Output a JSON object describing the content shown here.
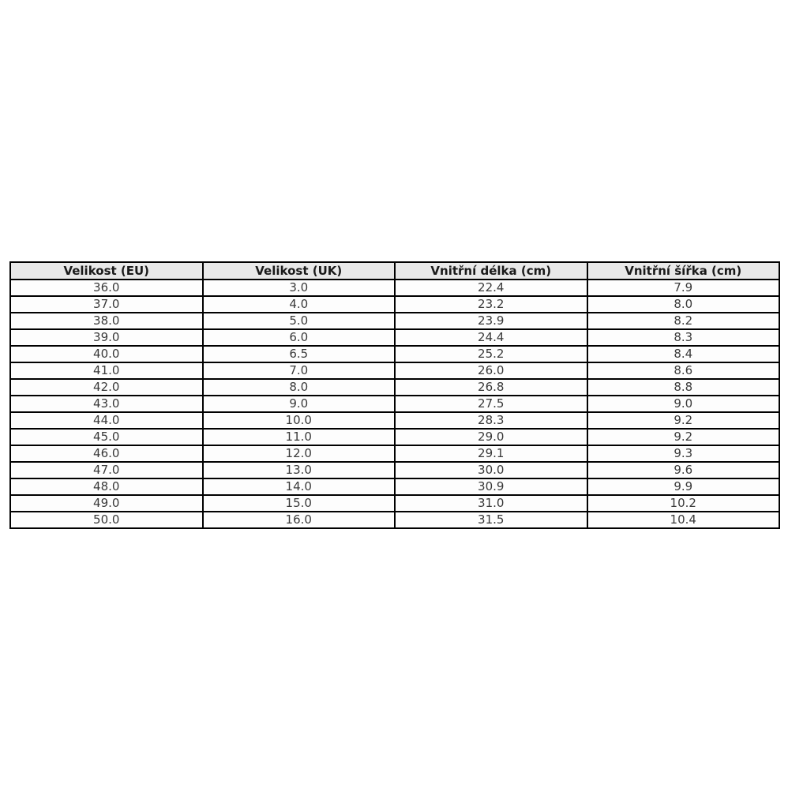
{
  "page": {
    "background_color": "#ffffff"
  },
  "colors": {
    "table_border": "#000000",
    "header_background": "#e8e8e8",
    "header_text": "#1a1a1a",
    "cell_background": "#fdfdfd",
    "cell_text": "#3a3a3a"
  },
  "chart_data": {
    "type": "table",
    "title": "",
    "columns": [
      "Velikost (EU)",
      "Velikost (UK)",
      "Vnitřní délka (cm)",
      "Vnitřní šířka (cm)"
    ],
    "rows": [
      [
        "36.0",
        "3.0",
        "22.4",
        "7.9"
      ],
      [
        "37.0",
        "4.0",
        "23.2",
        "8.0"
      ],
      [
        "38.0",
        "5.0",
        "23.9",
        "8.2"
      ],
      [
        "39.0",
        "6.0",
        "24.4",
        "8.3"
      ],
      [
        "40.0",
        "6.5",
        "25.2",
        "8.4"
      ],
      [
        "41.0",
        "7.0",
        "26.0",
        "8.6"
      ],
      [
        "42.0",
        "8.0",
        "26.8",
        "8.8"
      ],
      [
        "43.0",
        "9.0",
        "27.5",
        "9.0"
      ],
      [
        "44.0",
        "10.0",
        "28.3",
        "9.2"
      ],
      [
        "45.0",
        "11.0",
        "29.0",
        "9.2"
      ],
      [
        "46.0",
        "12.0",
        "29.1",
        "9.3"
      ],
      [
        "47.0",
        "13.0",
        "30.0",
        "9.6"
      ],
      [
        "48.0",
        "14.0",
        "30.9",
        "9.9"
      ],
      [
        "49.0",
        "15.0",
        "31.0",
        "10.2"
      ],
      [
        "50.0",
        "16.0",
        "31.5",
        "10.4"
      ]
    ]
  }
}
